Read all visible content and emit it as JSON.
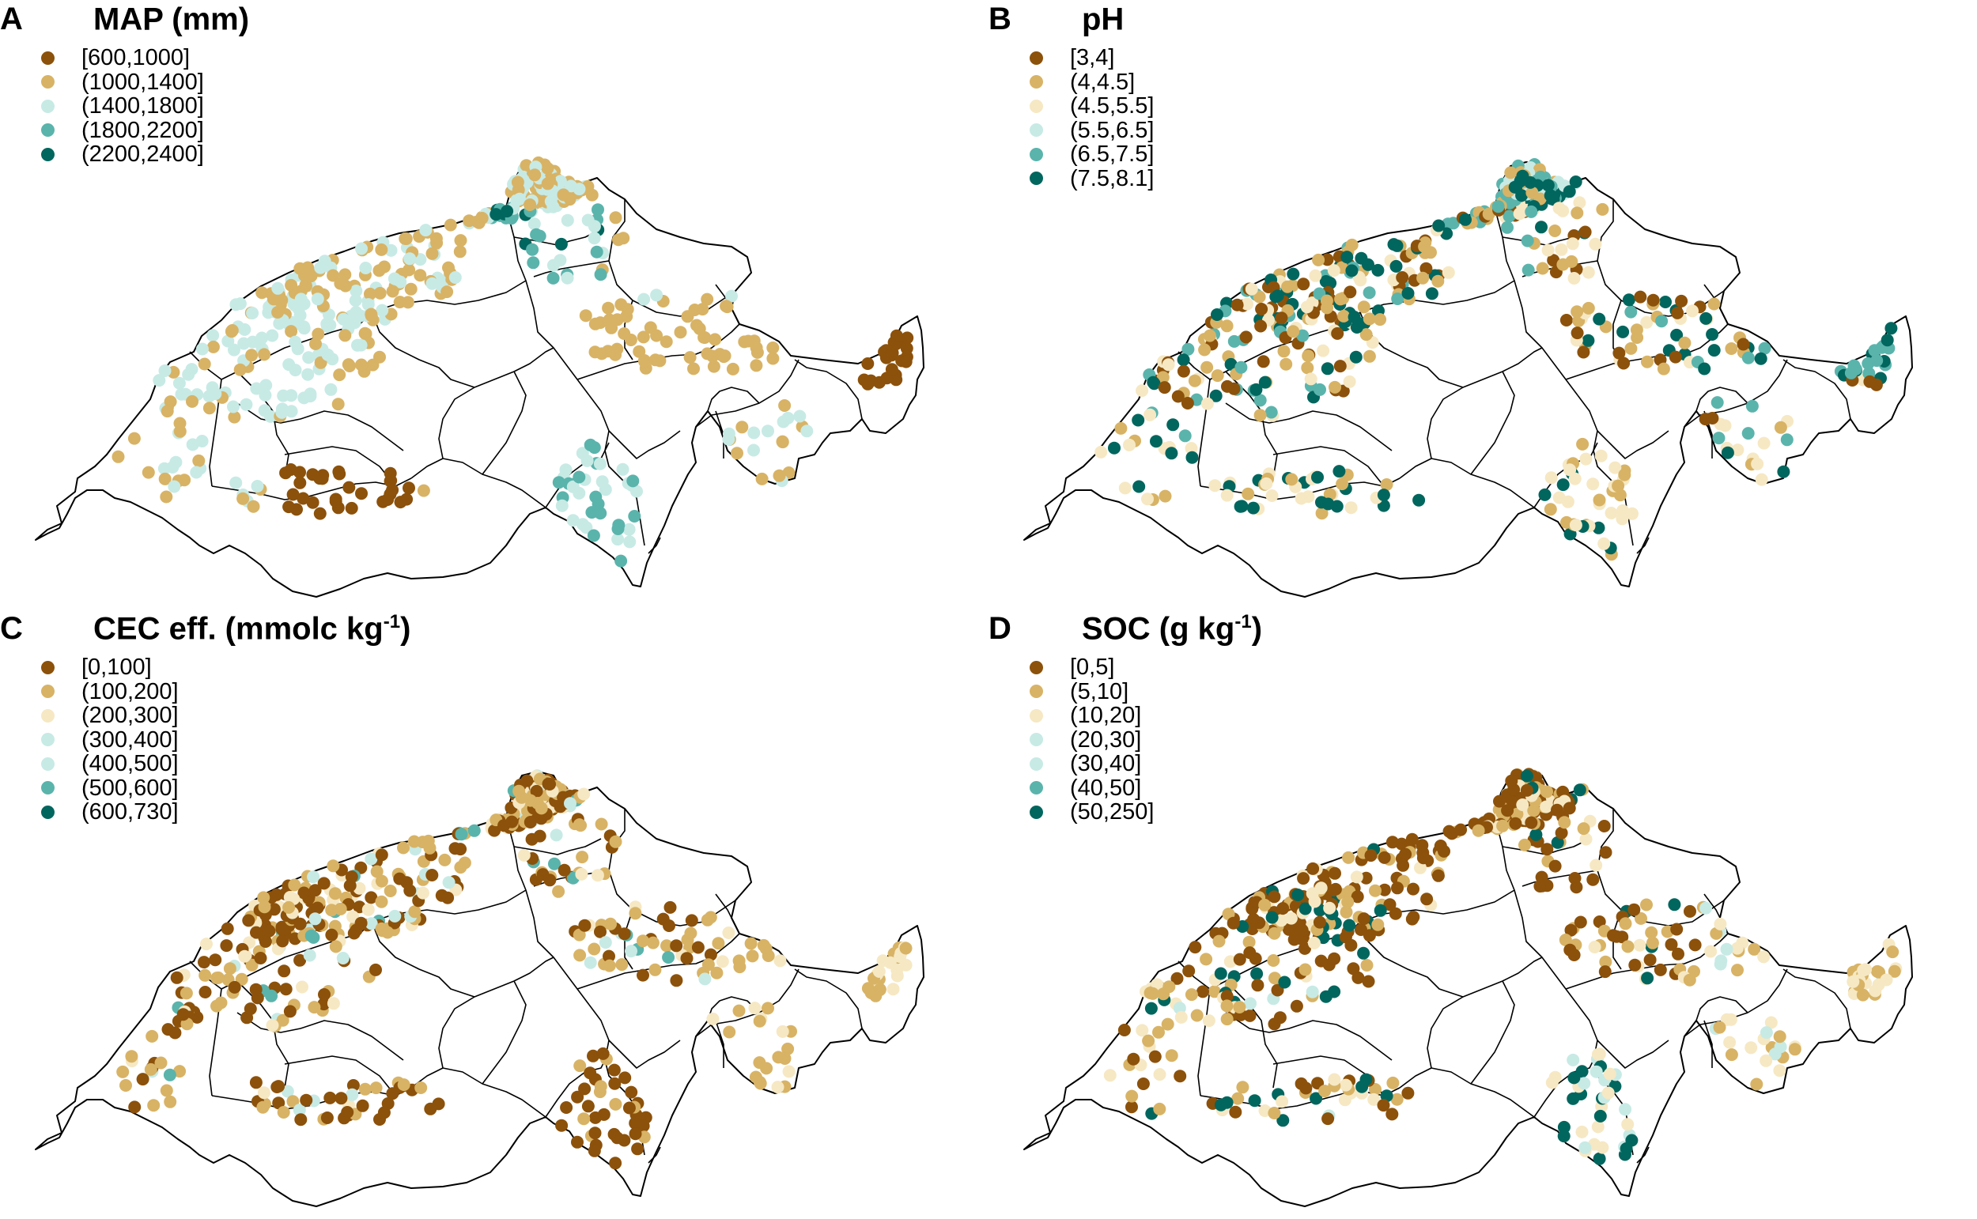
{
  "palette": {
    "c1": "#8c510a",
    "c2": "#d8b365",
    "c3": "#f6e8c3",
    "c4": "#c7eae5",
    "c5": "#5ab4ac",
    "c6": "#01665e"
  },
  "panels": [
    {
      "letter": "A",
      "title": "MAP (mm)",
      "title_sup": "",
      "title_end": "",
      "legend": [
        {
          "label": "[600,1000]",
          "color": "#8c510a"
        },
        {
          "label": "(1000,1400]",
          "color": "#d8b365"
        },
        {
          "label": "(1400,1800]",
          "color": "#c7eae5"
        },
        {
          "label": "(1800,2200]",
          "color": "#5ab4ac"
        },
        {
          "label": "(2200,2400]",
          "color": "#01665e"
        }
      ]
    },
    {
      "letter": "B",
      "title": "pH",
      "title_sup": "",
      "title_end": "",
      "legend": [
        {
          "label": "[3,4]",
          "color": "#8c510a"
        },
        {
          "label": "(4,4.5]",
          "color": "#d8b365"
        },
        {
          "label": "(4.5,5.5]",
          "color": "#f6e8c3"
        },
        {
          "label": "(5.5,6.5]",
          "color": "#c7eae5"
        },
        {
          "label": "(6.5,7.5]",
          "color": "#5ab4ac"
        },
        {
          "label": "(7.5,8.1]",
          "color": "#01665e"
        }
      ]
    },
    {
      "letter": "C",
      "title": "CEC eff. (mmolc kg",
      "title_sup": "-1",
      "title_end": ")",
      "legend": [
        {
          "label": "[0,100]",
          "color": "#8c510a"
        },
        {
          "label": "(100,200]",
          "color": "#d8b365"
        },
        {
          "label": "(200,300]",
          "color": "#f6e8c3"
        },
        {
          "label": "(300,400]",
          "color": "#c7eae5"
        },
        {
          "label": "(400,500]",
          "color": "#c7eae5"
        },
        {
          "label": "(500,600]",
          "color": "#5ab4ac"
        },
        {
          "label": "(600,730]",
          "color": "#01665e"
        }
      ]
    },
    {
      "letter": "D",
      "title": "SOC (g kg",
      "title_sup": "-1",
      "title_end": ")",
      "legend": [
        {
          "label": "[0,5]",
          "color": "#8c510a"
        },
        {
          "label": "(5,10]",
          "color": "#d8b365"
        },
        {
          "label": "(10,20]",
          "color": "#f6e8c3"
        },
        {
          "label": "(20,30]",
          "color": "#c7eae5"
        },
        {
          "label": "(30,40]",
          "color": "#c7eae5"
        },
        {
          "label": "(40,50]",
          "color": "#5ab4ac"
        },
        {
          "label": "(50,250]",
          "color": "#01665e"
        }
      ]
    }
  ]
}
